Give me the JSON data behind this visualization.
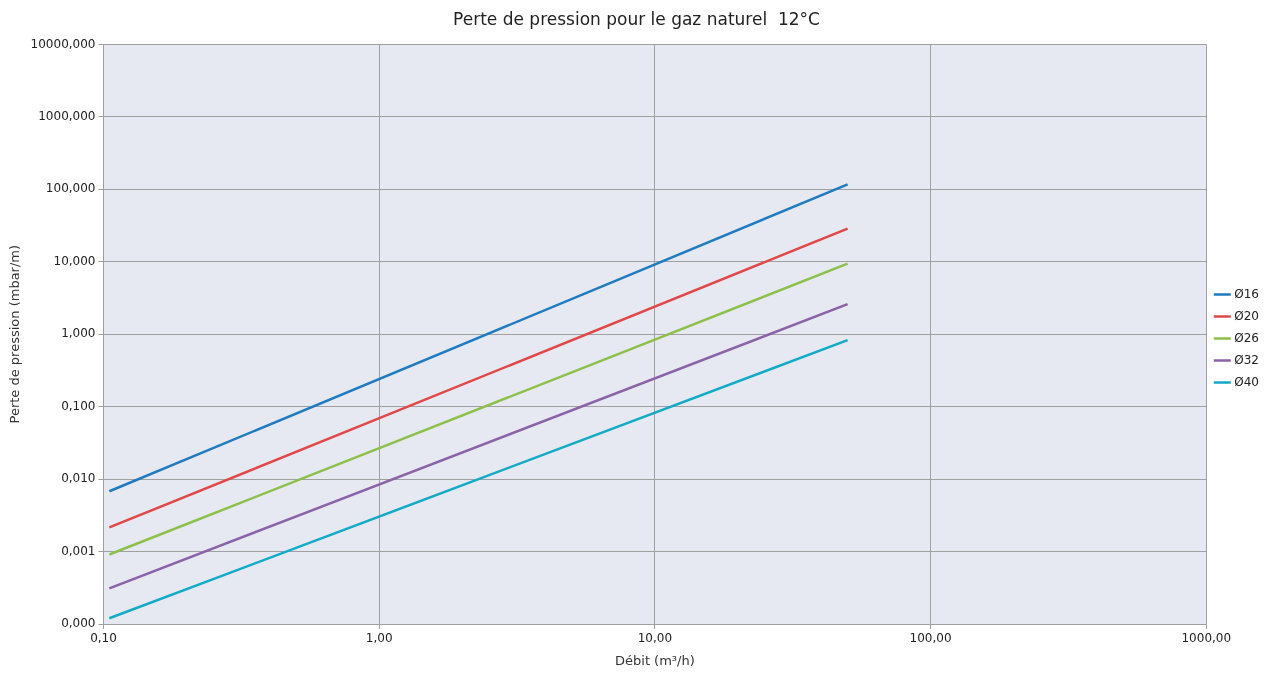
{
  "chart_data": {
    "type": "line",
    "title": "Perte de pression pour le gaz naturel  12°C",
    "xlabel": "Débit (m³/h)",
    "ylabel": "Perte de pression (mbar/m)",
    "x": [
      0.105,
      50
    ],
    "log": "xy",
    "grid": true,
    "legend": "right",
    "marker": "none",
    "line_style": "solid",
    "xlim": [
      0.1,
      1000
    ],
    "xticks": [
      {
        "value": 0.1,
        "label": "0,10"
      },
      {
        "value": 1,
        "label": "1,00"
      },
      {
        "value": 10,
        "label": "10,00"
      },
      {
        "value": 100,
        "label": "100,00"
      },
      {
        "value": 1000,
        "label": "1000,00"
      }
    ],
    "ylim": [
      0.0001,
      10000
    ],
    "yticks": [
      {
        "value": 0.0001,
        "label": "0,000"
      },
      {
        "value": 0.001,
        "label": "0,001"
      },
      {
        "value": 0.01,
        "label": "0,010"
      },
      {
        "value": 0.1,
        "label": "0,100"
      },
      {
        "value": 1,
        "label": "1,000"
      },
      {
        "value": 10,
        "label": "10,000"
      },
      {
        "value": 100,
        "label": "100,000"
      },
      {
        "value": 1000,
        "label": "1000,000"
      },
      {
        "value": 10000,
        "label": "10000,000"
      }
    ],
    "series": [
      {
        "name": "Ø16",
        "color": "#1f7bc1",
        "values": [
          0.0068,
          117
        ]
      },
      {
        "name": "Ø20",
        "color": "#e04848",
        "values": [
          0.00215,
          28.7
        ]
      },
      {
        "name": "Ø26",
        "color": "#8dc04a",
        "values": [
          0.00091,
          9.4
        ]
      },
      {
        "name": "Ø32",
        "color": "#8a62a8",
        "values": [
          0.00031,
          2.6
        ]
      },
      {
        "name": "Ø40",
        "color": "#12aac6",
        "values": [
          0.00012,
          0.83
        ]
      }
    ]
  }
}
